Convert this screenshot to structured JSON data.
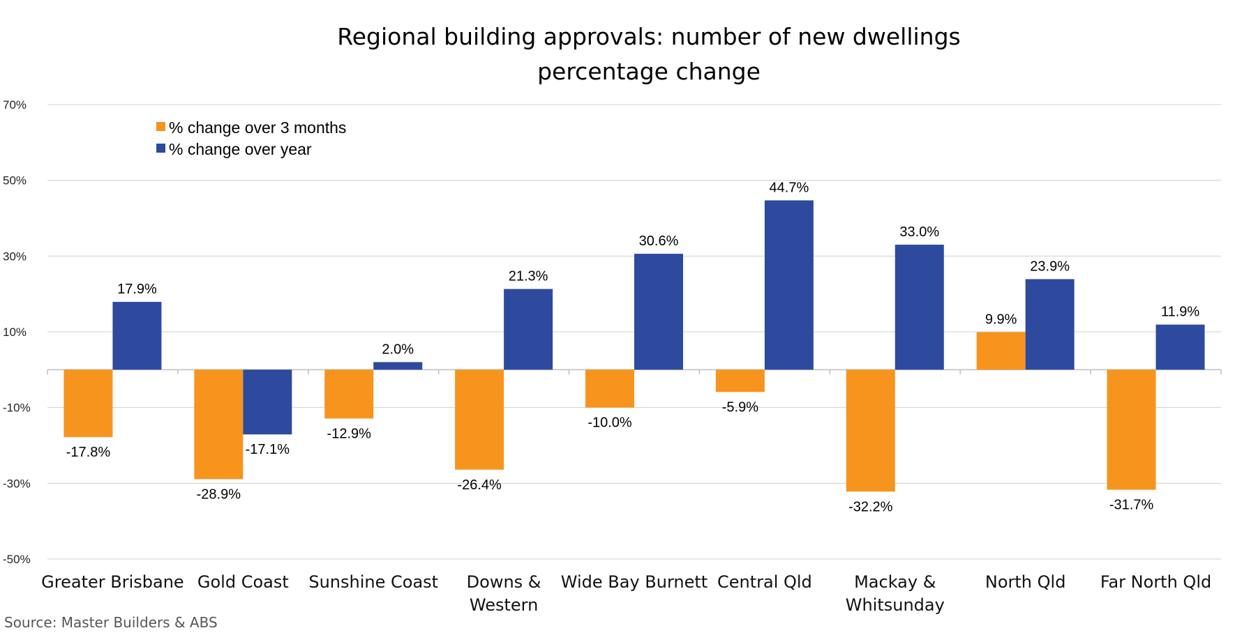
{
  "colors": {
    "three_month": "#F7941D",
    "year": "#2E4A9E"
  },
  "source": "Source:  Master Builders & ABS",
  "chart_data": {
    "type": "bar",
    "title": "Regional building approvals: number of new dwellings",
    "subtitle": "percentage change",
    "xlabel": "",
    "ylabel": "",
    "ylim": [
      -50,
      70
    ],
    "yticks": [
      70,
      50,
      30,
      10,
      -10,
      -30,
      -50
    ],
    "ytick_labels": [
      "70%",
      "50%",
      "30%",
      "10%",
      "-10%",
      "-30%",
      "-50%"
    ],
    "grid": true,
    "legend_position": "top-left",
    "categories": [
      [
        "Greater Brisbane"
      ],
      [
        "Gold Coast"
      ],
      [
        "Sunshine Coast"
      ],
      [
        "Downs &",
        "Western"
      ],
      [
        "Wide Bay Burnett"
      ],
      [
        "Central Qld"
      ],
      [
        "Mackay &",
        "Whitsunday"
      ],
      [
        "North Qld"
      ],
      [
        "Far North Qld"
      ]
    ],
    "series": [
      {
        "name": "% change over 3 months",
        "values": [
          -17.8,
          -28.9,
          -12.9,
          -26.4,
          -10.0,
          -5.9,
          -32.2,
          9.9,
          -31.7
        ],
        "labels": [
          "-17.8%",
          "-28.9%",
          "-12.9%",
          "-26.4%",
          "-10.0%",
          "-5.9%",
          "-32.2%",
          "9.9%",
          "-31.7%"
        ]
      },
      {
        "name": "% change over year",
        "values": [
          17.9,
          -17.1,
          2.0,
          21.3,
          30.6,
          44.7,
          33.0,
          23.9,
          11.9
        ],
        "labels": [
          "17.9%",
          "-17.1%",
          "2.0%",
          "21.3%",
          "30.6%",
          "44.7%",
          "33.0%",
          "23.9%",
          "11.9%"
        ]
      }
    ]
  }
}
